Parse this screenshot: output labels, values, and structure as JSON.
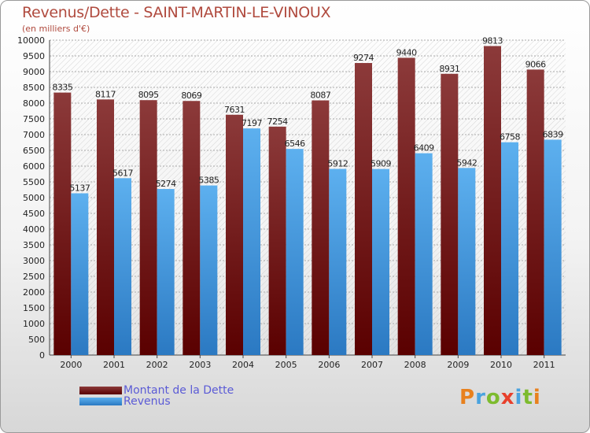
{
  "chart_data": {
    "type": "bar",
    "title": "Revenus/Dette - SAINT-MARTIN-LE-VINOUX",
    "subtitle": "(en milliers d'€)",
    "categories": [
      "2000",
      "2001",
      "2002",
      "2003",
      "2004",
      "2005",
      "2006",
      "2007",
      "2008",
      "2009",
      "2010",
      "2011"
    ],
    "series": [
      {
        "name": "Montant de la Dette",
        "color": "#7a1a1a",
        "values": [
          8335,
          8117,
          8095,
          8069,
          7631,
          7254,
          8087,
          9274,
          9440,
          8931,
          9813,
          9066
        ]
      },
      {
        "name": "Revenus",
        "color": "#4d9fdf",
        "values": [
          5137,
          5617,
          5274,
          5385,
          7197,
          6546,
          5912,
          5909,
          6409,
          5942,
          6758,
          6839
        ]
      }
    ],
    "ylim": [
      0,
      10000
    ],
    "yticks": [
      0,
      500,
      1000,
      1500,
      2000,
      2500,
      3000,
      3500,
      4000,
      4500,
      5000,
      5500,
      6000,
      6500,
      7000,
      7500,
      8000,
      8500,
      9000,
      9500,
      10000
    ],
    "grid": true,
    "legend": "bottom-left"
  },
  "logo": {
    "letters": [
      "P",
      "r",
      "o",
      "x",
      "i",
      "t",
      "i"
    ],
    "colors": [
      "#e8811e",
      "#4aa3df",
      "#7dbb2e",
      "#e8402c",
      "#4aa3df",
      "#7dbb2e",
      "#e8811e"
    ]
  }
}
